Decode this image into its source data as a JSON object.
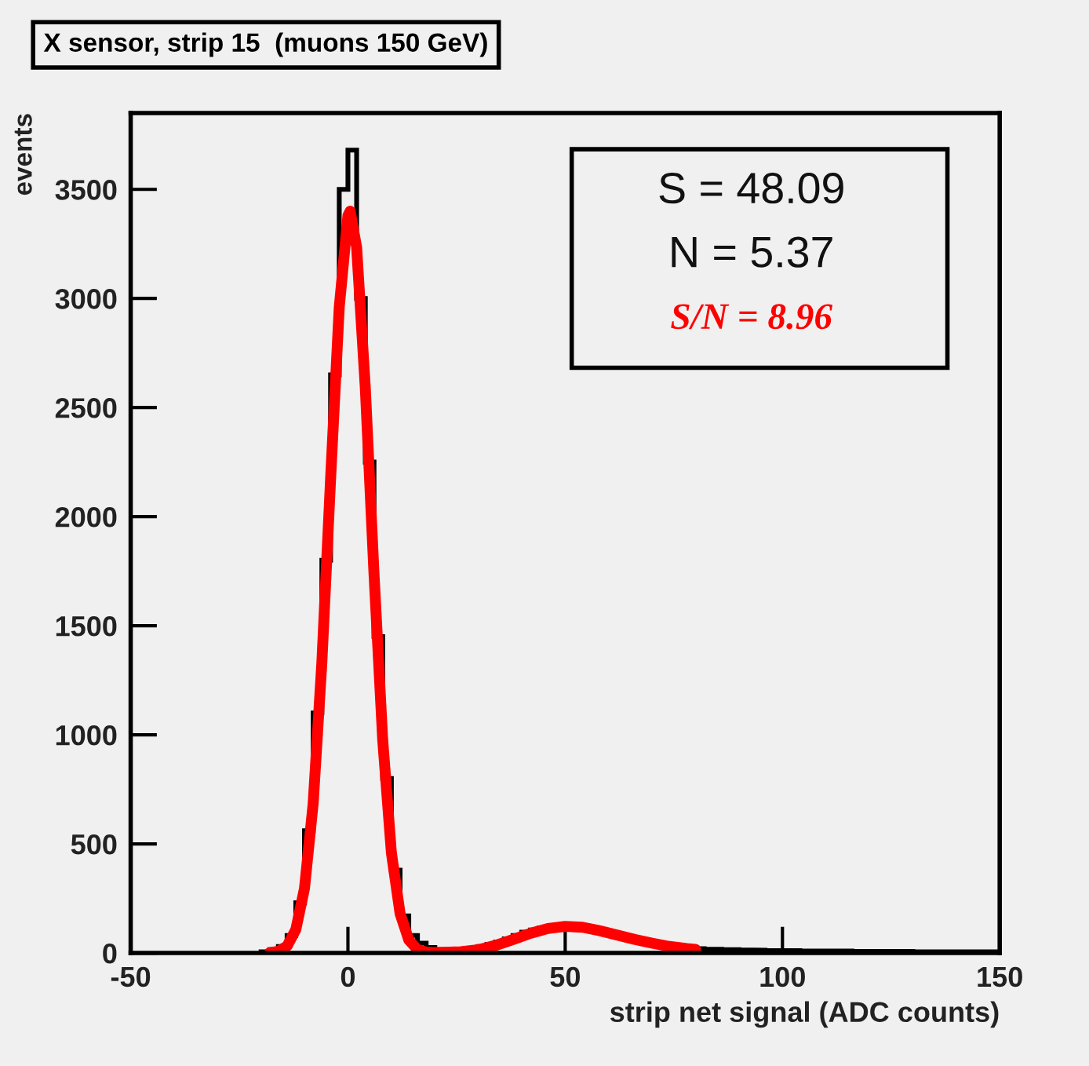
{
  "chart_data": {
    "type": "histogram",
    "title": "X sensor, strip 15  (muons 150 GeV)",
    "xlabel": "strip net signal (ADC counts)",
    "ylabel": "events",
    "bins": [
      -20,
      -18,
      -16,
      -14,
      -12,
      -10,
      -8,
      -6,
      -4,
      -2,
      0,
      2,
      4,
      6,
      8,
      10,
      12,
      14,
      16,
      18,
      20,
      22,
      24,
      26,
      28,
      30,
      32,
      34,
      36,
      38,
      40,
      42,
      44,
      46,
      48,
      50,
      52,
      54,
      56,
      58,
      60,
      62,
      64,
      66,
      68,
      70,
      72,
      74,
      76,
      78,
      80,
      82,
      84,
      86,
      88,
      90,
      92,
      94,
      96,
      98,
      100,
      102,
      104,
      106,
      108,
      110,
      112,
      114,
      116,
      118,
      120,
      122,
      124,
      126,
      128,
      130,
      132,
      134,
      136,
      138,
      140,
      142,
      144,
      146,
      148,
      150
    ],
    "values": [
      5,
      15,
      30,
      80,
      230,
      560,
      1100,
      1800,
      2650,
      3500,
      3680,
      3000,
      2250,
      1450,
      800,
      380,
      170,
      80,
      45,
      25,
      15,
      12,
      12,
      15,
      20,
      30,
      40,
      50,
      65,
      80,
      95,
      105,
      115,
      120,
      125,
      125,
      120,
      115,
      105,
      95,
      85,
      75,
      65,
      55,
      48,
      42,
      36,
      30,
      26,
      22,
      20,
      18,
      17,
      16,
      15,
      14,
      13,
      13,
      12,
      12,
      11,
      11,
      10,
      10,
      10,
      9,
      9,
      9,
      8,
      8,
      8,
      7,
      7,
      7,
      7,
      6,
      6,
      6,
      6,
      5,
      5,
      5,
      5,
      5,
      5
    ],
    "color": "#000000",
    "series": [
      {
        "type": "line",
        "color": "#ff0000",
        "x": [
          -18,
          -16,
          -14,
          -12,
          -10,
          -8,
          -6,
          -4,
          -2,
          0,
          0.5,
          2,
          4,
          6,
          8,
          10,
          12,
          14,
          16,
          18,
          20,
          22,
          26,
          30,
          34,
          38,
          42,
          46,
          50,
          54,
          58,
          62,
          66,
          70,
          74,
          78,
          80
        ],
        "values": [
          2,
          8,
          32,
          107,
          296,
          686,
          1332,
          2170,
          2960,
          3380,
          3400,
          3235,
          2590,
          1738,
          977,
          460,
          181,
          60,
          16,
          4,
          2,
          3,
          6,
          15,
          35,
          62,
          90,
          112,
          122,
          118,
          102,
          82,
          62,
          45,
          30,
          20,
          17
        ]
      }
    ],
    "annotations": [
      "S = 48.09",
      "N = 5.37",
      "S/N = 8.96"
    ],
    "xlim": [
      -50,
      150
    ],
    "xticks": [
      -50,
      0,
      50,
      100,
      150
    ],
    "ylim": [
      0,
      3850
    ],
    "yticks": [
      0,
      500,
      1000,
      1500,
      2000,
      2500,
      3000,
      3500
    ],
    "grid": false,
    "legend": false
  }
}
